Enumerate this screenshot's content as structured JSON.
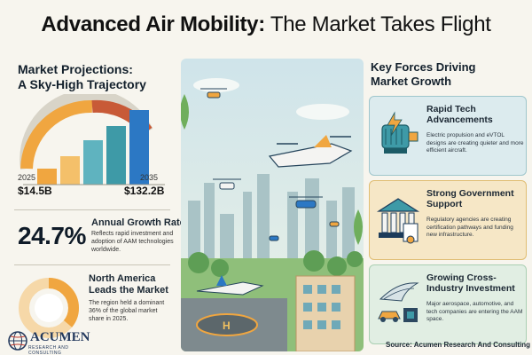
{
  "title": {
    "bold": "Advanced Air Mobility:",
    "light": " The Market Takes Flight"
  },
  "left": {
    "heading_line1": "Market Projections:",
    "heading_line2": "A Sky-High Trajectory",
    "chart": {
      "start_year": "2025",
      "end_year": "2035",
      "start_value": "$14.5B",
      "end_value": "$132.2B"
    },
    "growth": {
      "rate": "24.7%",
      "title": "Annual Growth Rate",
      "desc": "Reflects rapid investment and adoption of AAM technologies worldwide."
    },
    "region": {
      "title_line1": "North America",
      "title_line2": "Leads the Market",
      "desc": "The region held a dominant 36% of the global market share in 2025.",
      "share_percent": 36
    },
    "logo": {
      "name": "ACUMEN",
      "sub": "RESEARCH AND CONSULTING"
    }
  },
  "right": {
    "heading_line1": "Key Forces Driving",
    "heading_line2": "Market Growth",
    "cards": [
      {
        "title_line1": "Rapid Tech",
        "title_line2": "Advancements",
        "desc": "Electric propulsion and eVTOL designs are creating quieter and more efficient aircraft.",
        "icon": "electric-motor-icon"
      },
      {
        "title_line1": "Strong Government",
        "title_line2": "Support",
        "desc": "Regulatory agencies are creating certification pathways and funding new infrastructure.",
        "icon": "government-building-icon"
      },
      {
        "title_line1": "Growing Cross-",
        "title_line2": "Industry Investment",
        "desc": "Major aerospace, automotive, and tech companies are entering the AAM space.",
        "icon": "wing-car-chip-icon"
      }
    ]
  },
  "source": "Source: Acumen Research And Consulting",
  "colors": {
    "teal": "#3e9aa7",
    "orange": "#f0a640",
    "blue": "#2c78c4",
    "navy": "#1c2c44"
  }
}
